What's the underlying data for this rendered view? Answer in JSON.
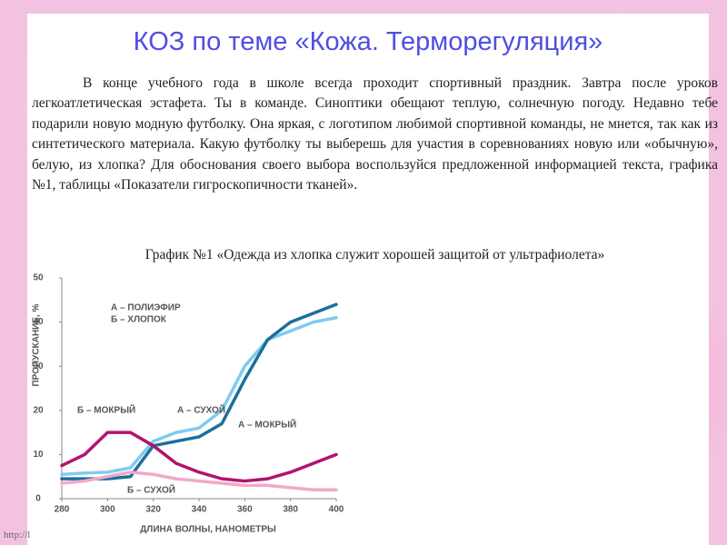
{
  "header": {
    "title": "КОЗ по теме «Кожа. Терморегуляция»"
  },
  "body": {
    "paragraph": "В конце учебного года в школе всегда проходит спортивный праздник.  Завтра после уроков легкоатлетическая эстафета. Ты в команде. Синоптики обещают теплую, солнечную погоду. Недавно тебе подарили новую модную футболку. Она яркая, с логотипом любимой спортивной команды, не мнется, так как из синтетического материала. Какую футболку ты выберешь для участия в соревнованиях  новую или «обычную», белую, из хлопка? Для обоснования своего выбора воспользуйся предложенной информацией текста, графика №1, таблицы «Показатели гигроскопичности тканей».",
    "caption": "График №1 «Одежда из хлопка служит хорошей защитой от ультрафиолета»"
  },
  "footer": "http://l",
  "chart_data": {
    "type": "line",
    "x_label": "ДЛИНА ВОЛНЫ, НАНОМЕТРЫ",
    "y_label": "ПРОПУСКАНИЕ, %",
    "annotations": [
      "А – ПОЛИЭФИР",
      "Б – ХЛОПОК"
    ],
    "x": [
      280,
      290,
      300,
      310,
      320,
      330,
      340,
      350,
      360,
      370,
      380,
      390,
      400
    ],
    "series": [
      {
        "name": "А – СУХОЙ",
        "color": "#7fcbef",
        "values": [
          5.5,
          5.8,
          6,
          7,
          13,
          15,
          16,
          20,
          30,
          36,
          38,
          40,
          41
        ]
      },
      {
        "name": "А – МОКРЫЙ",
        "color": "#1c6f9c",
        "values": [
          4.5,
          4.5,
          4.5,
          5,
          12,
          13,
          14,
          17,
          27,
          36,
          40,
          42,
          44
        ]
      },
      {
        "name": "Б – МОКРЫЙ",
        "color": "#b0146e",
        "values": [
          7.5,
          10,
          15,
          15,
          12,
          8,
          6,
          4.5,
          4,
          4.5,
          6,
          8,
          10
        ]
      },
      {
        "name": "Б – СУХОЙ",
        "color": "#f2a9c9",
        "values": [
          3.5,
          4,
          5,
          6,
          5.5,
          4.5,
          4,
          3.5,
          3,
          3,
          2.5,
          2,
          2
        ]
      }
    ],
    "xlim": [
      280,
      400
    ],
    "xticks": [
      280,
      300,
      320,
      340,
      360,
      380,
      400
    ],
    "ylim": [
      0,
      50
    ],
    "yticks": [
      0,
      10,
      20,
      30,
      40,
      50
    ]
  }
}
